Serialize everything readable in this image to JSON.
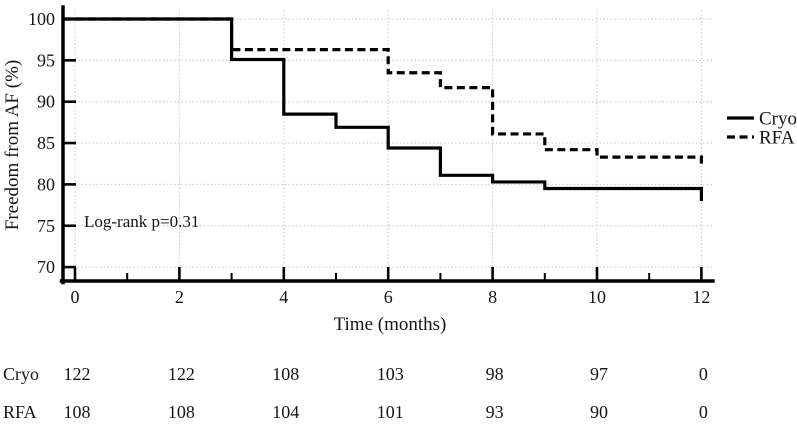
{
  "figure": {
    "annotation": "Log-rank p=0.31"
  },
  "chart_data": {
    "type": "line",
    "subtype": "kaplan-meier-step",
    "title": "",
    "xlabel": "Time (months)",
    "ylabel": "Freedom from AF (%)",
    "xlim": [
      0,
      12
    ],
    "ylim": [
      68,
      101
    ],
    "xticks": [
      0,
      2,
      4,
      6,
      8,
      10,
      12
    ],
    "xminorticks": [
      1,
      3,
      5,
      7,
      9,
      11
    ],
    "yticks": [
      70,
      75,
      80,
      85,
      90,
      95,
      100
    ],
    "grid": true,
    "legend_position": "right-outside",
    "annotation": "Log-rank p=0.31",
    "series": [
      {
        "name": "Cryo",
        "style": "solid",
        "color": "#000000",
        "note": "each point = [month, freedom-from-AF % after the drop at that month]",
        "points": [
          [
            0,
            100
          ],
          [
            3,
            95.1
          ],
          [
            4,
            88.5
          ],
          [
            5,
            86.9
          ],
          [
            6,
            84.4
          ],
          [
            7,
            81.1
          ],
          [
            8,
            80.3
          ],
          [
            9,
            79.5
          ],
          [
            12,
            78.0
          ]
        ]
      },
      {
        "name": "RFA",
        "style": "dashed",
        "color": "#000000",
        "note": "each point = [month, freedom-from-AF % after the drop at that month]",
        "points": [
          [
            0,
            100
          ],
          [
            3,
            96.3
          ],
          [
            6,
            93.5
          ],
          [
            7,
            91.7
          ],
          [
            8,
            86.1
          ],
          [
            9,
            84.2
          ],
          [
            10,
            83.3
          ],
          [
            12,
            82.3
          ]
        ]
      }
    ]
  },
  "risk_table": {
    "months": [
      0,
      2,
      4,
      6,
      8,
      10,
      12
    ],
    "rows": [
      {
        "label": "Cryo",
        "values": [
          "122",
          "122",
          "108",
          "103",
          "98",
          "97",
          "0"
        ]
      },
      {
        "label": "RFA",
        "values": [
          "108",
          "108",
          "104",
          "101",
          "93",
          "90",
          "0"
        ]
      }
    ]
  },
  "colors": {
    "line": "#000000",
    "grid": "#c6c6c6",
    "background": "#ffffff",
    "text": "#151515"
  }
}
